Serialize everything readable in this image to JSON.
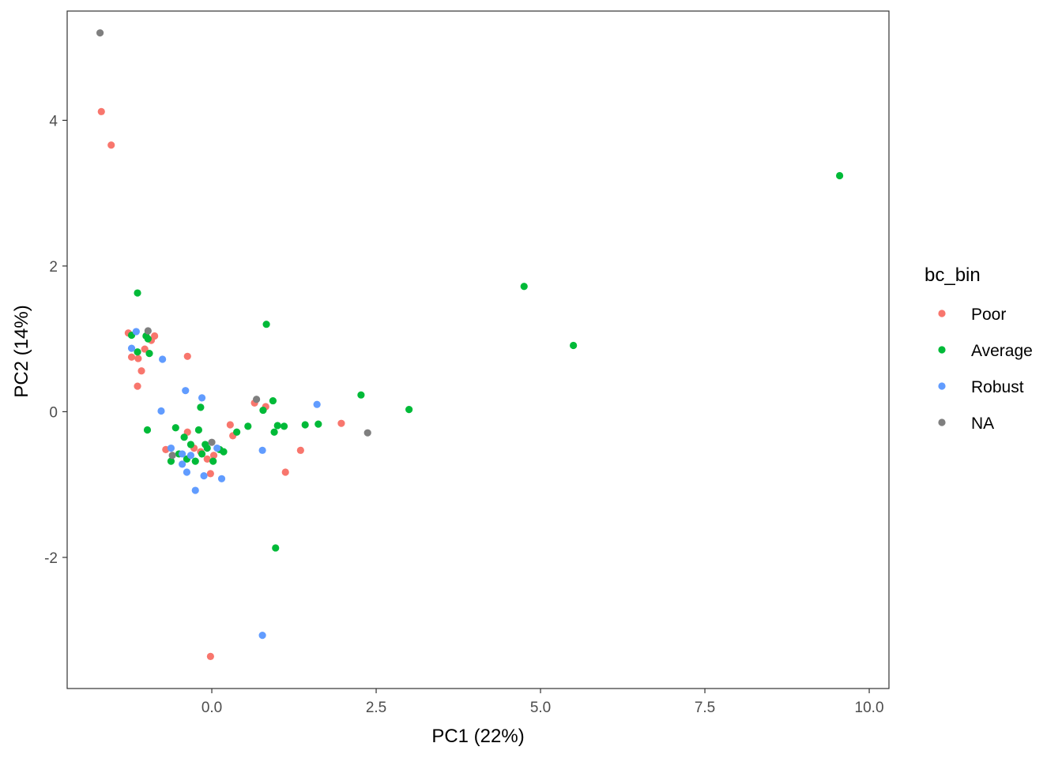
{
  "chart_data": {
    "type": "scatter",
    "title": "",
    "xlabel": "PC1 (22%)",
    "ylabel": "PC2 (14%)",
    "xlim": [
      -2.2,
      10.3
    ],
    "ylim": [
      -3.8,
      5.5
    ],
    "x_ticks": [
      {
        "value": 0,
        "label": "0.0"
      },
      {
        "value": 2.5,
        "label": "2.5"
      },
      {
        "value": 5,
        "label": "5.0"
      },
      {
        "value": 7.5,
        "label": "7.5"
      },
      {
        "value": 10,
        "label": "10.0"
      }
    ],
    "y_ticks": [
      {
        "value": -2,
        "label": "-2"
      },
      {
        "value": 0,
        "label": "0"
      },
      {
        "value": 2,
        "label": "2"
      },
      {
        "value": 4,
        "label": "4"
      }
    ],
    "grid": false,
    "legend": {
      "title": "bc_bin",
      "position": "right",
      "entries": [
        {
          "label": "Poor",
          "color": "#F8766D"
        },
        {
          "label": "Average",
          "color": "#00BA38"
        },
        {
          "label": "Robust",
          "color": "#619CFF"
        },
        {
          "label": "NA",
          "color": "#7F7F7F"
        }
      ]
    },
    "series": [
      {
        "name": "Poor",
        "color": "#F8766D",
        "points": [
          [
            -1.68,
            4.12
          ],
          [
            -1.53,
            3.66
          ],
          [
            -1.27,
            1.08
          ],
          [
            -1.22,
            0.75
          ],
          [
            -1.12,
            0.73
          ],
          [
            -1.07,
            0.56
          ],
          [
            -1.13,
            0.35
          ],
          [
            -1.02,
            0.86
          ],
          [
            -0.92,
            0.98
          ],
          [
            -0.87,
            1.04
          ],
          [
            -0.37,
            0.76
          ],
          [
            -0.7,
            -0.52
          ],
          [
            -0.37,
            -0.28
          ],
          [
            -0.27,
            -0.5
          ],
          [
            -0.17,
            -0.55
          ],
          [
            -0.07,
            -0.65
          ],
          [
            -0.02,
            -0.85
          ],
          [
            0.03,
            -0.6
          ],
          [
            -0.02,
            -3.36
          ],
          [
            0.28,
            -0.18
          ],
          [
            0.32,
            -0.33
          ],
          [
            0.65,
            0.12
          ],
          [
            0.82,
            0.07
          ],
          [
            1.12,
            -0.83
          ],
          [
            1.35,
            -0.53
          ],
          [
            1.97,
            -0.16
          ]
        ]
      },
      {
        "name": "Average",
        "color": "#00BA38",
        "points": [
          [
            -1.13,
            1.63
          ],
          [
            -1.22,
            1.05
          ],
          [
            -1.13,
            0.82
          ],
          [
            -1.0,
            1.04
          ],
          [
            -0.97,
            1.0
          ],
          [
            -0.95,
            0.8
          ],
          [
            -0.98,
            -0.25
          ],
          [
            -0.55,
            -0.22
          ],
          [
            -0.5,
            -0.58
          ],
          [
            -0.62,
            -0.68
          ],
          [
            -0.42,
            -0.35
          ],
          [
            -0.38,
            -0.65
          ],
          [
            -0.32,
            -0.45
          ],
          [
            -0.25,
            -0.68
          ],
          [
            -0.2,
            -0.25
          ],
          [
            -0.17,
            0.06
          ],
          [
            -0.15,
            -0.58
          ],
          [
            -0.1,
            -0.45
          ],
          [
            -0.07,
            -0.5
          ],
          [
            0.02,
            -0.68
          ],
          [
            0.12,
            -0.52
          ],
          [
            0.18,
            -0.55
          ],
          [
            0.38,
            -0.28
          ],
          [
            0.55,
            -0.2
          ],
          [
            0.78,
            0.02
          ],
          [
            0.83,
            1.2
          ],
          [
            0.93,
            0.15
          ],
          [
            0.95,
            -0.28
          ],
          [
            1.0,
            -0.19
          ],
          [
            1.1,
            -0.2
          ],
          [
            1.42,
            -0.18
          ],
          [
            1.62,
            -0.17
          ],
          [
            2.27,
            0.23
          ],
          [
            3.0,
            0.03
          ],
          [
            0.97,
            -1.87
          ],
          [
            4.75,
            1.72
          ],
          [
            5.5,
            0.91
          ],
          [
            9.55,
            3.24
          ]
        ]
      },
      {
        "name": "Robust",
        "color": "#619CFF",
        "points": [
          [
            -1.15,
            1.1
          ],
          [
            -1.22,
            0.87
          ],
          [
            -0.75,
            0.72
          ],
          [
            -0.77,
            0.01
          ],
          [
            -0.62,
            -0.5
          ],
          [
            -0.45,
            -0.72
          ],
          [
            -0.45,
            -0.58
          ],
          [
            -0.38,
            -0.83
          ],
          [
            -0.4,
            0.29
          ],
          [
            -0.32,
            -0.6
          ],
          [
            -0.25,
            -1.08
          ],
          [
            -0.15,
            0.19
          ],
          [
            -0.12,
            -0.88
          ],
          [
            0.08,
            -0.5
          ],
          [
            0.15,
            -0.92
          ],
          [
            0.77,
            -0.53
          ],
          [
            0.77,
            -3.07
          ],
          [
            1.6,
            0.1
          ]
        ]
      },
      {
        "name": "NA",
        "color": "#7F7F7F",
        "points": [
          [
            -1.7,
            5.2
          ],
          [
            -0.97,
            1.11
          ],
          [
            -0.6,
            -0.6
          ],
          [
            0.0,
            -0.42
          ],
          [
            0.68,
            0.17
          ],
          [
            2.37,
            -0.29
          ]
        ]
      }
    ]
  }
}
